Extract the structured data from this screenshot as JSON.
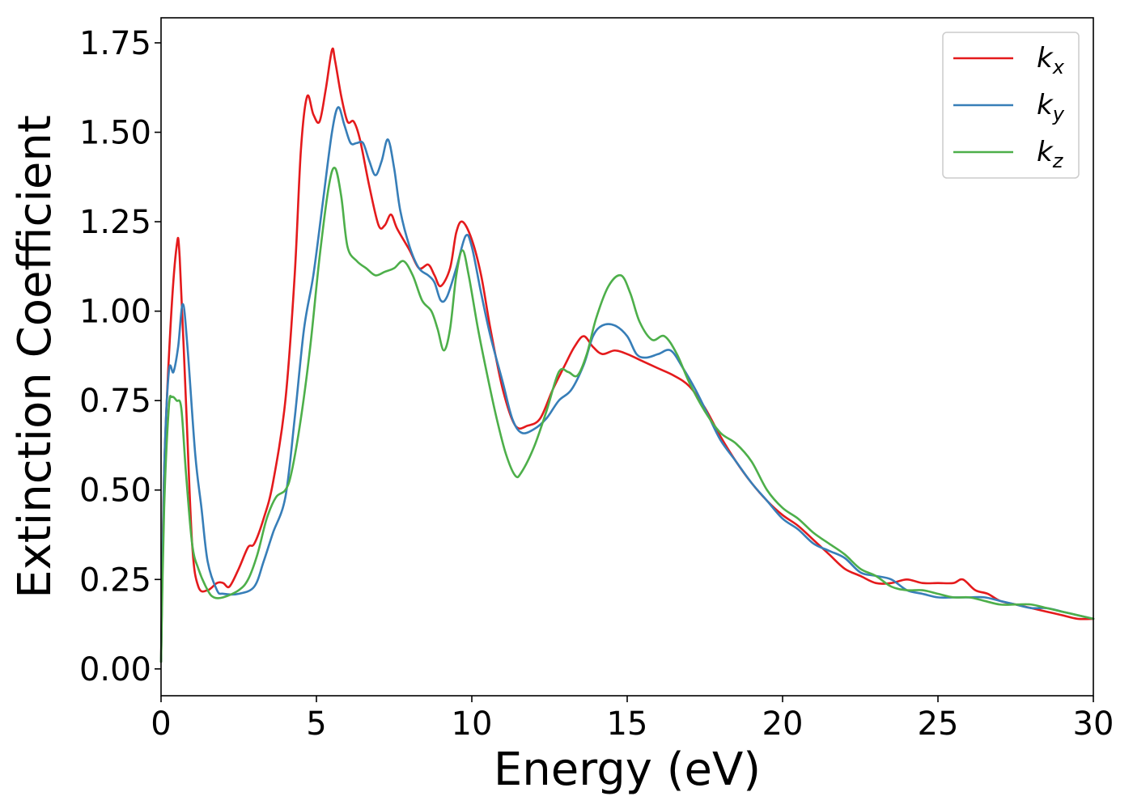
{
  "chart_data": {
    "type": "line",
    "title": "",
    "xlabel": "Energy (eV)",
    "ylabel": "Extinction Coefficient",
    "xlim": [
      0,
      30
    ],
    "ylim": [
      -0.075,
      1.82
    ],
    "xticks": [
      0,
      5,
      10,
      15,
      20,
      25,
      30
    ],
    "xtick_labels": [
      "0",
      "5",
      "10",
      "15",
      "20",
      "25",
      "30"
    ],
    "yticks": [
      0.0,
      0.25,
      0.5,
      0.75,
      1.0,
      1.25,
      1.5,
      1.75
    ],
    "ytick_labels": [
      "0.00",
      "0.25",
      "0.50",
      "0.75",
      "1.00",
      "1.25",
      "1.50",
      "1.75"
    ],
    "grid": false,
    "legend_position": "top-right",
    "series": [
      {
        "name": "k",
        "subscript": "x",
        "color": "#e41a1c",
        "points": [
          [
            0,
            0.02
          ],
          [
            0.1,
            0.55
          ],
          [
            0.3,
            0.95
          ],
          [
            0.5,
            1.18
          ],
          [
            0.6,
            1.15
          ],
          [
            0.8,
            0.75
          ],
          [
            1.0,
            0.35
          ],
          [
            1.2,
            0.23
          ],
          [
            1.5,
            0.22
          ],
          [
            1.8,
            0.24
          ],
          [
            2.0,
            0.24
          ],
          [
            2.2,
            0.23
          ],
          [
            2.5,
            0.28
          ],
          [
            2.8,
            0.34
          ],
          [
            3.0,
            0.35
          ],
          [
            3.3,
            0.42
          ],
          [
            3.6,
            0.52
          ],
          [
            4.0,
            0.75
          ],
          [
            4.3,
            1.1
          ],
          [
            4.5,
            1.45
          ],
          [
            4.7,
            1.6
          ],
          [
            4.9,
            1.55
          ],
          [
            5.1,
            1.53
          ],
          [
            5.3,
            1.62
          ],
          [
            5.5,
            1.73
          ],
          [
            5.6,
            1.7
          ],
          [
            5.8,
            1.6
          ],
          [
            6.0,
            1.53
          ],
          [
            6.2,
            1.53
          ],
          [
            6.4,
            1.48
          ],
          [
            6.7,
            1.35
          ],
          [
            7.0,
            1.24
          ],
          [
            7.2,
            1.24
          ],
          [
            7.4,
            1.27
          ],
          [
            7.6,
            1.23
          ],
          [
            8.0,
            1.17
          ],
          [
            8.3,
            1.12
          ],
          [
            8.6,
            1.13
          ],
          [
            8.8,
            1.1
          ],
          [
            9.0,
            1.07
          ],
          [
            9.3,
            1.12
          ],
          [
            9.5,
            1.22
          ],
          [
            9.7,
            1.25
          ],
          [
            10.0,
            1.2
          ],
          [
            10.3,
            1.1
          ],
          [
            10.6,
            0.95
          ],
          [
            11.0,
            0.78
          ],
          [
            11.4,
            0.68
          ],
          [
            11.8,
            0.68
          ],
          [
            12.2,
            0.7
          ],
          [
            12.6,
            0.78
          ],
          [
            13.0,
            0.85
          ],
          [
            13.3,
            0.9
          ],
          [
            13.6,
            0.93
          ],
          [
            13.9,
            0.9
          ],
          [
            14.2,
            0.88
          ],
          [
            14.6,
            0.89
          ],
          [
            15.0,
            0.88
          ],
          [
            15.5,
            0.86
          ],
          [
            16.0,
            0.84
          ],
          [
            16.5,
            0.82
          ],
          [
            17.0,
            0.79
          ],
          [
            17.5,
            0.73
          ],
          [
            18.0,
            0.65
          ],
          [
            18.5,
            0.58
          ],
          [
            19.0,
            0.52
          ],
          [
            19.5,
            0.47
          ],
          [
            20.0,
            0.43
          ],
          [
            20.5,
            0.4
          ],
          [
            21.0,
            0.36
          ],
          [
            21.5,
            0.32
          ],
          [
            22.0,
            0.28
          ],
          [
            22.5,
            0.26
          ],
          [
            23.0,
            0.24
          ],
          [
            23.5,
            0.24
          ],
          [
            24.0,
            0.25
          ],
          [
            24.5,
            0.24
          ],
          [
            25.0,
            0.24
          ],
          [
            25.5,
            0.24
          ],
          [
            25.8,
            0.25
          ],
          [
            26.2,
            0.22
          ],
          [
            26.6,
            0.21
          ],
          [
            27.0,
            0.19
          ],
          [
            27.5,
            0.18
          ],
          [
            28.0,
            0.17
          ],
          [
            28.5,
            0.16
          ],
          [
            29.0,
            0.15
          ],
          [
            29.5,
            0.14
          ],
          [
            30.0,
            0.14
          ]
        ]
      },
      {
        "name": "k",
        "subscript": "y",
        "color": "#377eb8",
        "points": [
          [
            0,
            0.02
          ],
          [
            0.1,
            0.55
          ],
          [
            0.25,
            0.83
          ],
          [
            0.4,
            0.83
          ],
          [
            0.55,
            0.9
          ],
          [
            0.7,
            1.02
          ],
          [
            0.85,
            0.9
          ],
          [
            1.1,
            0.6
          ],
          [
            1.3,
            0.45
          ],
          [
            1.5,
            0.3
          ],
          [
            1.8,
            0.22
          ],
          [
            2.0,
            0.21
          ],
          [
            2.5,
            0.21
          ],
          [
            3.0,
            0.23
          ],
          [
            3.3,
            0.3
          ],
          [
            3.6,
            0.38
          ],
          [
            4.0,
            0.48
          ],
          [
            4.3,
            0.7
          ],
          [
            4.6,
            0.95
          ],
          [
            4.9,
            1.1
          ],
          [
            5.2,
            1.3
          ],
          [
            5.5,
            1.5
          ],
          [
            5.7,
            1.57
          ],
          [
            5.9,
            1.52
          ],
          [
            6.1,
            1.47
          ],
          [
            6.3,
            1.47
          ],
          [
            6.5,
            1.47
          ],
          [
            6.7,
            1.42
          ],
          [
            6.9,
            1.38
          ],
          [
            7.1,
            1.42
          ],
          [
            7.3,
            1.48
          ],
          [
            7.5,
            1.4
          ],
          [
            7.7,
            1.28
          ],
          [
            8.0,
            1.18
          ],
          [
            8.3,
            1.12
          ],
          [
            8.6,
            1.1
          ],
          [
            8.8,
            1.08
          ],
          [
            9.0,
            1.03
          ],
          [
            9.2,
            1.04
          ],
          [
            9.5,
            1.12
          ],
          [
            9.8,
            1.21
          ],
          [
            10.0,
            1.18
          ],
          [
            10.3,
            1.05
          ],
          [
            10.6,
            0.93
          ],
          [
            11.0,
            0.8
          ],
          [
            11.3,
            0.7
          ],
          [
            11.6,
            0.66
          ],
          [
            12.0,
            0.67
          ],
          [
            12.4,
            0.7
          ],
          [
            12.8,
            0.75
          ],
          [
            13.2,
            0.78
          ],
          [
            13.6,
            0.85
          ],
          [
            13.9,
            0.93
          ],
          [
            14.2,
            0.96
          ],
          [
            14.6,
            0.96
          ],
          [
            15.0,
            0.93
          ],
          [
            15.3,
            0.88
          ],
          [
            15.6,
            0.87
          ],
          [
            16.0,
            0.88
          ],
          [
            16.4,
            0.89
          ],
          [
            16.8,
            0.84
          ],
          [
            17.2,
            0.78
          ],
          [
            17.6,
            0.71
          ],
          [
            18.0,
            0.64
          ],
          [
            18.5,
            0.58
          ],
          [
            19.0,
            0.52
          ],
          [
            19.5,
            0.47
          ],
          [
            20.0,
            0.42
          ],
          [
            20.5,
            0.39
          ],
          [
            21.0,
            0.35
          ],
          [
            21.5,
            0.33
          ],
          [
            22.0,
            0.31
          ],
          [
            22.5,
            0.27
          ],
          [
            23.0,
            0.26
          ],
          [
            23.5,
            0.25
          ],
          [
            24.0,
            0.22
          ],
          [
            24.5,
            0.21
          ],
          [
            25.0,
            0.2
          ],
          [
            25.5,
            0.2
          ],
          [
            26.0,
            0.2
          ],
          [
            26.5,
            0.2
          ],
          [
            27.0,
            0.19
          ],
          [
            27.5,
            0.18
          ],
          [
            28.0,
            0.17
          ],
          [
            28.5,
            0.17
          ],
          [
            29.0,
            0.16
          ],
          [
            29.5,
            0.15
          ],
          [
            30.0,
            0.14
          ]
        ]
      },
      {
        "name": "k",
        "subscript": "z",
        "color": "#4daf4a",
        "points": [
          [
            0,
            0.02
          ],
          [
            0.1,
            0.45
          ],
          [
            0.25,
            0.73
          ],
          [
            0.35,
            0.76
          ],
          [
            0.5,
            0.75
          ],
          [
            0.65,
            0.73
          ],
          [
            0.8,
            0.55
          ],
          [
            1.0,
            0.35
          ],
          [
            1.2,
            0.28
          ],
          [
            1.5,
            0.22
          ],
          [
            1.7,
            0.2
          ],
          [
            2.0,
            0.2
          ],
          [
            2.5,
            0.22
          ],
          [
            2.8,
            0.25
          ],
          [
            3.1,
            0.32
          ],
          [
            3.4,
            0.42
          ],
          [
            3.7,
            0.48
          ],
          [
            4.0,
            0.5
          ],
          [
            4.2,
            0.55
          ],
          [
            4.5,
            0.7
          ],
          [
            4.8,
            0.9
          ],
          [
            5.1,
            1.15
          ],
          [
            5.4,
            1.35
          ],
          [
            5.6,
            1.4
          ],
          [
            5.8,
            1.32
          ],
          [
            6.0,
            1.18
          ],
          [
            6.3,
            1.14
          ],
          [
            6.6,
            1.12
          ],
          [
            6.9,
            1.1
          ],
          [
            7.2,
            1.11
          ],
          [
            7.5,
            1.12
          ],
          [
            7.8,
            1.14
          ],
          [
            8.1,
            1.1
          ],
          [
            8.4,
            1.03
          ],
          [
            8.7,
            1.0
          ],
          [
            8.9,
            0.95
          ],
          [
            9.1,
            0.89
          ],
          [
            9.3,
            0.95
          ],
          [
            9.5,
            1.1
          ],
          [
            9.7,
            1.17
          ],
          [
            9.9,
            1.1
          ],
          [
            10.2,
            0.95
          ],
          [
            10.5,
            0.82
          ],
          [
            10.8,
            0.7
          ],
          [
            11.1,
            0.6
          ],
          [
            11.4,
            0.54
          ],
          [
            11.6,
            0.55
          ],
          [
            12.0,
            0.62
          ],
          [
            12.4,
            0.72
          ],
          [
            12.8,
            0.83
          ],
          [
            13.1,
            0.83
          ],
          [
            13.4,
            0.82
          ],
          [
            13.7,
            0.88
          ],
          [
            14.0,
            0.98
          ],
          [
            14.4,
            1.07
          ],
          [
            14.8,
            1.1
          ],
          [
            15.1,
            1.05
          ],
          [
            15.4,
            0.97
          ],
          [
            15.8,
            0.92
          ],
          [
            16.2,
            0.93
          ],
          [
            16.6,
            0.88
          ],
          [
            17.0,
            0.8
          ],
          [
            17.5,
            0.72
          ],
          [
            18.0,
            0.66
          ],
          [
            18.5,
            0.63
          ],
          [
            19.0,
            0.58
          ],
          [
            19.5,
            0.5
          ],
          [
            20.0,
            0.45
          ],
          [
            20.5,
            0.42
          ],
          [
            21.0,
            0.38
          ],
          [
            21.5,
            0.35
          ],
          [
            22.0,
            0.32
          ],
          [
            22.5,
            0.28
          ],
          [
            23.0,
            0.26
          ],
          [
            23.5,
            0.23
          ],
          [
            24.0,
            0.22
          ],
          [
            24.5,
            0.22
          ],
          [
            25.0,
            0.21
          ],
          [
            25.5,
            0.2
          ],
          [
            26.0,
            0.2
          ],
          [
            26.5,
            0.19
          ],
          [
            27.0,
            0.18
          ],
          [
            27.5,
            0.18
          ],
          [
            28.0,
            0.18
          ],
          [
            28.5,
            0.17
          ],
          [
            29.0,
            0.16
          ],
          [
            29.5,
            0.15
          ],
          [
            30.0,
            0.14
          ]
        ]
      }
    ]
  }
}
